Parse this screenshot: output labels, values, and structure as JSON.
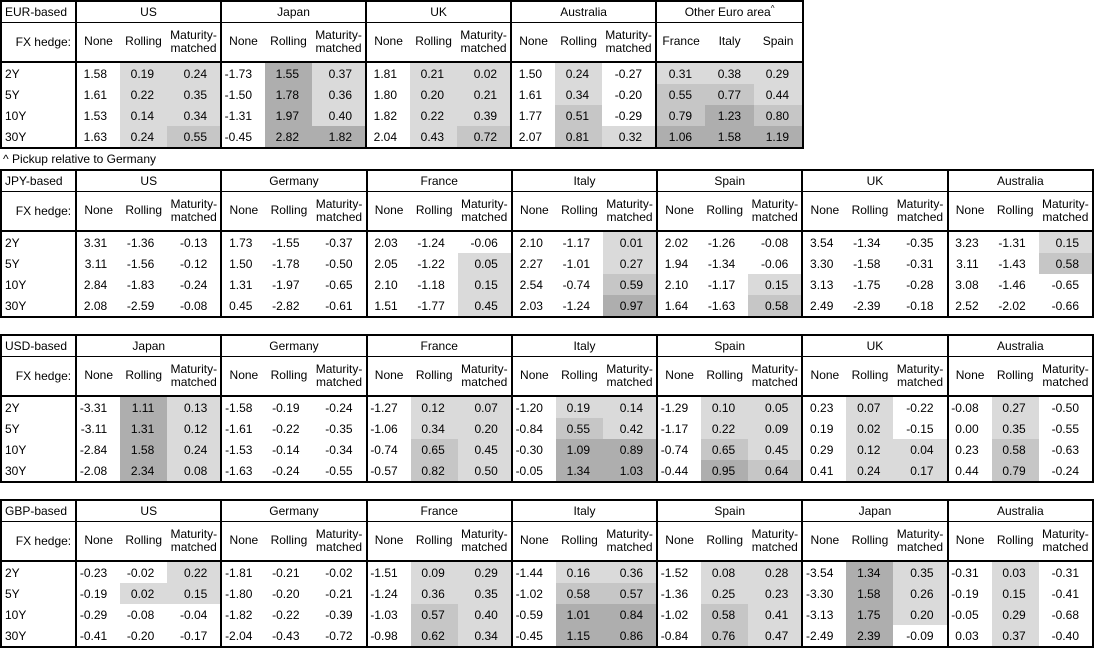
{
  "footnote": "^ Pickup relative to Germany",
  "hedge_header": "FX hedge:",
  "hedge_cols": [
    "None",
    "Rolling",
    "Maturity-matched"
  ],
  "tenors": [
    "2Y",
    "5Y",
    "10Y",
    "30Y"
  ],
  "shade": {
    "light": "#dadada",
    "medium": "#c6c6c6",
    "dark": "#aeaeae"
  },
  "tables": [
    {
      "base": "EUR-based",
      "groups": [
        {
          "name": "US",
          "rows": [
            [
              "1.58",
              "0.19",
              "0.24"
            ],
            [
              "1.61",
              "0.22",
              "0.35"
            ],
            [
              "1.53",
              "0.14",
              "0.34"
            ],
            [
              "1.63",
              "0.24",
              "0.55"
            ]
          ]
        },
        {
          "name": "Japan",
          "rows": [
            [
              "-1.73",
              "1.55",
              "0.37"
            ],
            [
              "-1.50",
              "1.78",
              "0.36"
            ],
            [
              "-1.31",
              "1.97",
              "0.40"
            ],
            [
              "-0.45",
              "2.82",
              "1.82"
            ]
          ]
        },
        {
          "name": "UK",
          "rows": [
            [
              "1.81",
              "0.21",
              "0.02"
            ],
            [
              "1.80",
              "0.20",
              "0.21"
            ],
            [
              "1.82",
              "0.22",
              "0.39"
            ],
            [
              "2.04",
              "0.43",
              "0.72"
            ]
          ]
        },
        {
          "name": "Australia",
          "rows": [
            [
              "1.50",
              "0.24",
              "-0.27"
            ],
            [
              "1.61",
              "0.34",
              "-0.20"
            ],
            [
              "1.77",
              "0.51",
              "-0.29"
            ],
            [
              "2.07",
              "0.81",
              "0.32"
            ]
          ]
        },
        {
          "name": "Other Euro area",
          "sup": "^",
          "cols": [
            "France",
            "Italy",
            "Spain"
          ],
          "shade_all": true,
          "rows": [
            [
              "0.31",
              "0.38",
              "0.29"
            ],
            [
              "0.55",
              "0.77",
              "0.44"
            ],
            [
              "0.79",
              "1.23",
              "0.80"
            ],
            [
              "1.06",
              "1.58",
              "1.19"
            ]
          ]
        }
      ]
    },
    {
      "base": "JPY-based",
      "groups": [
        {
          "name": "US",
          "rows": [
            [
              "3.31",
              "-1.36",
              "-0.13"
            ],
            [
              "3.11",
              "-1.56",
              "-0.12"
            ],
            [
              "2.84",
              "-1.83",
              "-0.24"
            ],
            [
              "2.08",
              "-2.59",
              "-0.08"
            ]
          ]
        },
        {
          "name": "Germany",
          "rows": [
            [
              "1.73",
              "-1.55",
              "-0.37"
            ],
            [
              "1.50",
              "-1.78",
              "-0.50"
            ],
            [
              "1.31",
              "-1.97",
              "-0.65"
            ],
            [
              "0.45",
              "-2.82",
              "-0.61"
            ]
          ]
        },
        {
          "name": "France",
          "rows": [
            [
              "2.03",
              "-1.24",
              "-0.06"
            ],
            [
              "2.05",
              "-1.22",
              "0.05"
            ],
            [
              "2.10",
              "-1.18",
              "0.15"
            ],
            [
              "1.51",
              "-1.77",
              "0.45"
            ]
          ]
        },
        {
          "name": "Italy",
          "rows": [
            [
              "2.10",
              "-1.17",
              "0.01"
            ],
            [
              "2.27",
              "-1.01",
              "0.27"
            ],
            [
              "2.54",
              "-0.74",
              "0.59"
            ],
            [
              "2.03",
              "-1.24",
              "0.97"
            ]
          ]
        },
        {
          "name": "Spain",
          "rows": [
            [
              "2.02",
              "-1.26",
              "-0.08"
            ],
            [
              "1.94",
              "-1.34",
              "-0.06"
            ],
            [
              "2.10",
              "-1.17",
              "0.15"
            ],
            [
              "1.64",
              "-1.63",
              "0.58"
            ]
          ]
        },
        {
          "name": "UK",
          "rows": [
            [
              "3.54",
              "-1.34",
              "-0.35"
            ],
            [
              "3.30",
              "-1.58",
              "-0.31"
            ],
            [
              "3.13",
              "-1.75",
              "-0.28"
            ],
            [
              "2.49",
              "-2.39",
              "-0.18"
            ]
          ]
        },
        {
          "name": "Australia",
          "rows": [
            [
              "3.23",
              "-1.31",
              "0.15"
            ],
            [
              "3.11",
              "-1.43",
              "0.58"
            ],
            [
              "3.08",
              "-1.46",
              "-0.65"
            ],
            [
              "2.52",
              "-2.02",
              "-0.66"
            ]
          ]
        }
      ]
    },
    {
      "base": "USD-based",
      "groups": [
        {
          "name": "Japan",
          "rows": [
            [
              "-3.31",
              "1.11",
              "0.13"
            ],
            [
              "-3.11",
              "1.31",
              "0.12"
            ],
            [
              "-2.84",
              "1.58",
              "0.24"
            ],
            [
              "-2.08",
              "2.34",
              "0.08"
            ]
          ]
        },
        {
          "name": "Germany",
          "rows": [
            [
              "-1.58",
              "-0.19",
              "-0.24"
            ],
            [
              "-1.61",
              "-0.22",
              "-0.35"
            ],
            [
              "-1.53",
              "-0.14",
              "-0.34"
            ],
            [
              "-1.63",
              "-0.24",
              "-0.55"
            ]
          ]
        },
        {
          "name": "France",
          "rows": [
            [
              "-1.27",
              "0.12",
              "0.07"
            ],
            [
              "-1.06",
              "0.34",
              "0.20"
            ],
            [
              "-0.74",
              "0.65",
              "0.45"
            ],
            [
              "-0.57",
              "0.82",
              "0.50"
            ]
          ]
        },
        {
          "name": "Italy",
          "rows": [
            [
              "-1.20",
              "0.19",
              "0.14"
            ],
            [
              "-0.84",
              "0.55",
              "0.42"
            ],
            [
              "-0.30",
              "1.09",
              "0.89"
            ],
            [
              "-0.05",
              "1.34",
              "1.03"
            ]
          ]
        },
        {
          "name": "Spain",
          "rows": [
            [
              "-1.29",
              "0.10",
              "0.05"
            ],
            [
              "-1.17",
              "0.22",
              "0.09"
            ],
            [
              "-0.74",
              "0.65",
              "0.45"
            ],
            [
              "-0.44",
              "0.95",
              "0.64"
            ]
          ]
        },
        {
          "name": "UK",
          "rows": [
            [
              "0.23",
              "0.07",
              "-0.22"
            ],
            [
              "0.19",
              "0.02",
              "-0.15"
            ],
            [
              "0.29",
              "0.12",
              "0.04"
            ],
            [
              "0.41",
              "0.24",
              "0.17"
            ]
          ]
        },
        {
          "name": "Australia",
          "rows": [
            [
              "-0.08",
              "0.27",
              "-0.50"
            ],
            [
              "0.00",
              "0.35",
              "-0.55"
            ],
            [
              "0.23",
              "0.58",
              "-0.63"
            ],
            [
              "0.44",
              "0.79",
              "-0.24"
            ]
          ]
        }
      ]
    },
    {
      "base": "GBP-based",
      "groups": [
        {
          "name": "US",
          "rows": [
            [
              "-0.23",
              "-0.02",
              "0.22"
            ],
            [
              "-0.19",
              "0.02",
              "0.15"
            ],
            [
              "-0.29",
              "-0.08",
              "-0.04"
            ],
            [
              "-0.41",
              "-0.20",
              "-0.17"
            ]
          ]
        },
        {
          "name": "Germany",
          "rows": [
            [
              "-1.81",
              "-0.21",
              "-0.02"
            ],
            [
              "-1.80",
              "-0.20",
              "-0.21"
            ],
            [
              "-1.82",
              "-0.22",
              "-0.39"
            ],
            [
              "-2.04",
              "-0.43",
              "-0.72"
            ]
          ]
        },
        {
          "name": "France",
          "rows": [
            [
              "-1.51",
              "0.09",
              "0.29"
            ],
            [
              "-1.24",
              "0.36",
              "0.35"
            ],
            [
              "-1.03",
              "0.57",
              "0.40"
            ],
            [
              "-0.98",
              "0.62",
              "0.34"
            ]
          ]
        },
        {
          "name": "Italy",
          "rows": [
            [
              "-1.44",
              "0.16",
              "0.36"
            ],
            [
              "-1.02",
              "0.58",
              "0.57"
            ],
            [
              "-0.59",
              "1.01",
              "0.84"
            ],
            [
              "-0.45",
              "1.15",
              "0.86"
            ]
          ]
        },
        {
          "name": "Spain",
          "rows": [
            [
              "-1.52",
              "0.08",
              "0.28"
            ],
            [
              "-1.36",
              "0.25",
              "0.23"
            ],
            [
              "-1.02",
              "0.58",
              "0.41"
            ],
            [
              "-0.84",
              "0.76",
              "0.47"
            ]
          ]
        },
        {
          "name": "Japan",
          "rows": [
            [
              "-3.54",
              "1.34",
              "0.35"
            ],
            [
              "-3.30",
              "1.58",
              "0.26"
            ],
            [
              "-3.13",
              "1.75",
              "0.20"
            ],
            [
              "-2.49",
              "2.39",
              "-0.09"
            ]
          ]
        },
        {
          "name": "Australia",
          "rows": [
            [
              "-0.31",
              "0.03",
              "-0.31"
            ],
            [
              "-0.19",
              "0.15",
              "-0.41"
            ],
            [
              "-0.05",
              "0.29",
              "-0.68"
            ],
            [
              "0.03",
              "0.37",
              "-0.40"
            ]
          ]
        }
      ]
    }
  ]
}
